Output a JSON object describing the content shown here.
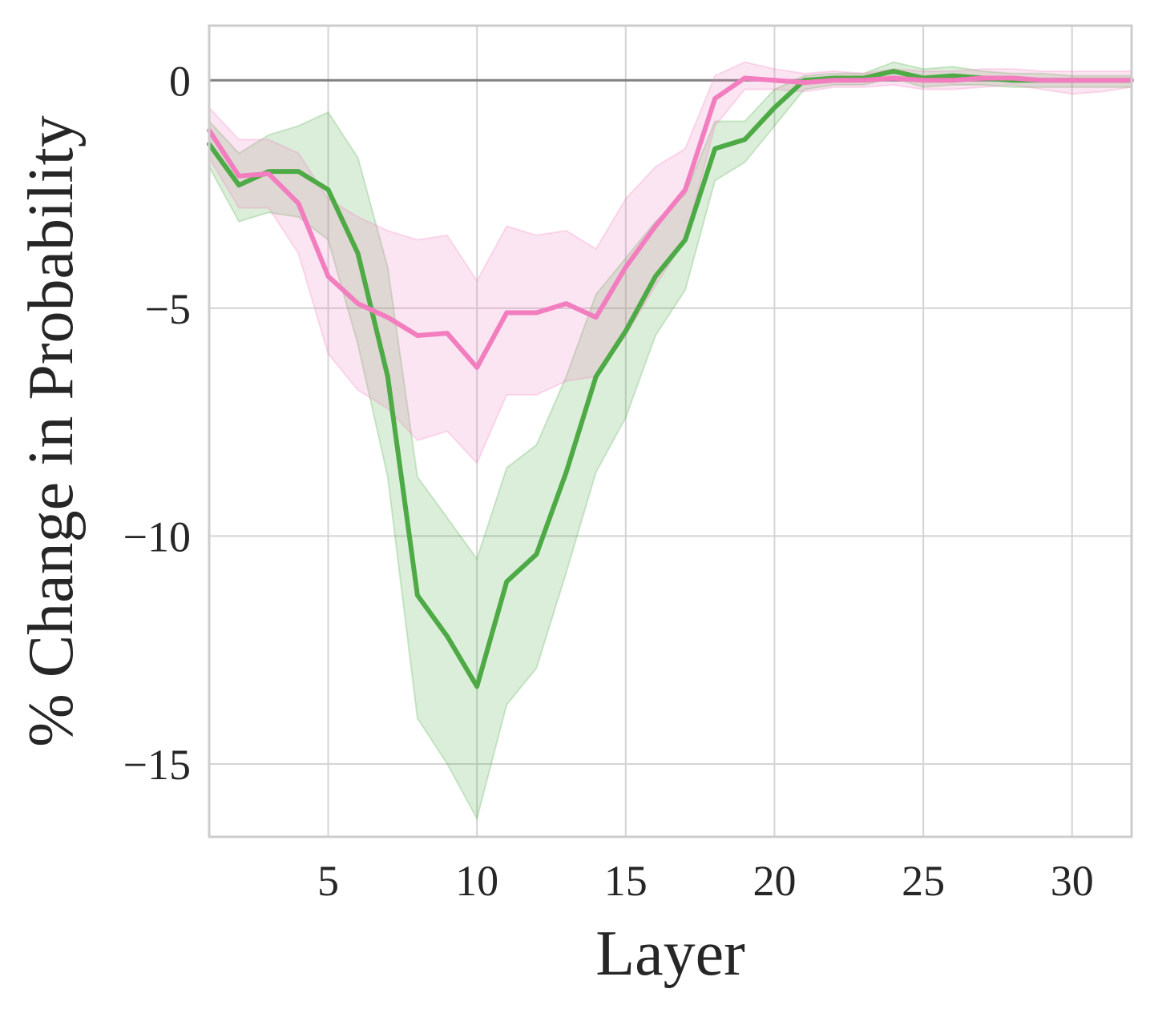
{
  "chart_data": {
    "type": "line",
    "title": "",
    "xlabel": "Layer",
    "ylabel": "% Change in Probability",
    "xlim": [
      1,
      32
    ],
    "ylim": [
      -16.6,
      1.2
    ],
    "x_ticks": [
      5,
      10,
      15,
      20,
      25,
      30
    ],
    "y_ticks": [
      0,
      -5,
      -10,
      -15
    ],
    "x_tick_labels": [
      "5",
      "10",
      "15",
      "20",
      "25",
      "30"
    ],
    "y_tick_labels": [
      "0",
      "−5",
      "−10",
      "−15"
    ],
    "grid": true,
    "reference_line_y": 0,
    "reference_line_color": "#808080",
    "x": [
      1,
      2,
      3,
      4,
      5,
      6,
      7,
      8,
      9,
      10,
      11,
      12,
      13,
      14,
      15,
      16,
      17,
      18,
      19,
      20,
      21,
      22,
      23,
      24,
      25,
      26,
      27,
      28,
      29,
      30,
      31,
      32
    ],
    "series": [
      {
        "color": "#4daa45",
        "fill_color": "#4daa45",
        "values": [
          -1.4,
          -2.3,
          -2.0,
          -2.0,
          -2.4,
          -3.8,
          -6.5,
          -11.3,
          -12.2,
          -13.3,
          -11.0,
          -10.4,
          -8.6,
          -6.5,
          -5.5,
          -4.3,
          -3.5,
          -1.5,
          -1.3,
          -0.6,
          0.0,
          0.05,
          0.05,
          0.2,
          0.05,
          0.1,
          0.05,
          0.0,
          0.0,
          0.0,
          0.0,
          0.0
        ],
        "lower": [
          -1.9,
          -3.1,
          -2.9,
          -3.0,
          -3.5,
          -5.8,
          -8.7,
          -14.0,
          -15.0,
          -16.2,
          -13.7,
          -12.9,
          -10.8,
          -8.6,
          -7.4,
          -5.6,
          -4.6,
          -2.2,
          -1.8,
          -1.0,
          -0.2,
          -0.1,
          -0.1,
          0.05,
          -0.15,
          -0.1,
          -0.1,
          -0.15,
          -0.15,
          -0.15,
          -0.15,
          -0.15
        ],
        "upper": [
          -0.9,
          -1.6,
          -1.2,
          -1.0,
          -0.7,
          -1.7,
          -4.1,
          -8.7,
          -9.6,
          -10.5,
          -8.5,
          -8.0,
          -6.5,
          -4.7,
          -3.9,
          -3.1,
          -2.5,
          -0.9,
          -0.9,
          -0.2,
          0.1,
          0.15,
          0.15,
          0.4,
          0.25,
          0.3,
          0.2,
          0.15,
          0.15,
          0.1,
          0.1,
          0.1
        ]
      },
      {
        "color": "#f27dbf",
        "fill_color": "#f27dbf",
        "values": [
          -1.1,
          -2.1,
          -2.05,
          -2.7,
          -4.3,
          -4.9,
          -5.2,
          -5.6,
          -5.55,
          -6.3,
          -5.1,
          -5.1,
          -4.9,
          -5.2,
          -4.1,
          -3.2,
          -2.4,
          -0.4,
          0.05,
          0.0,
          -0.05,
          0.0,
          0.0,
          0.05,
          0.0,
          0.0,
          0.05,
          0.05,
          0.0,
          0.0,
          0.0,
          0.0
        ],
        "lower": [
          -1.7,
          -2.8,
          -2.8,
          -3.8,
          -6.0,
          -6.8,
          -7.2,
          -7.9,
          -7.7,
          -8.4,
          -6.9,
          -6.9,
          -6.6,
          -6.5,
          -5.6,
          -4.5,
          -3.5,
          -1.0,
          -0.2,
          -0.2,
          -0.25,
          -0.15,
          -0.15,
          -0.1,
          -0.2,
          -0.2,
          -0.15,
          -0.1,
          -0.2,
          -0.3,
          -0.25,
          -0.15
        ],
        "upper": [
          -0.6,
          -1.3,
          -1.3,
          -1.6,
          -2.6,
          -3.0,
          -3.3,
          -3.5,
          -3.4,
          -4.4,
          -3.2,
          -3.4,
          -3.3,
          -3.7,
          -2.6,
          -1.9,
          -1.5,
          0.1,
          0.4,
          0.25,
          0.15,
          0.2,
          0.15,
          0.25,
          0.2,
          0.2,
          0.25,
          0.25,
          0.2,
          0.2,
          0.2,
          0.2
        ]
      }
    ]
  }
}
